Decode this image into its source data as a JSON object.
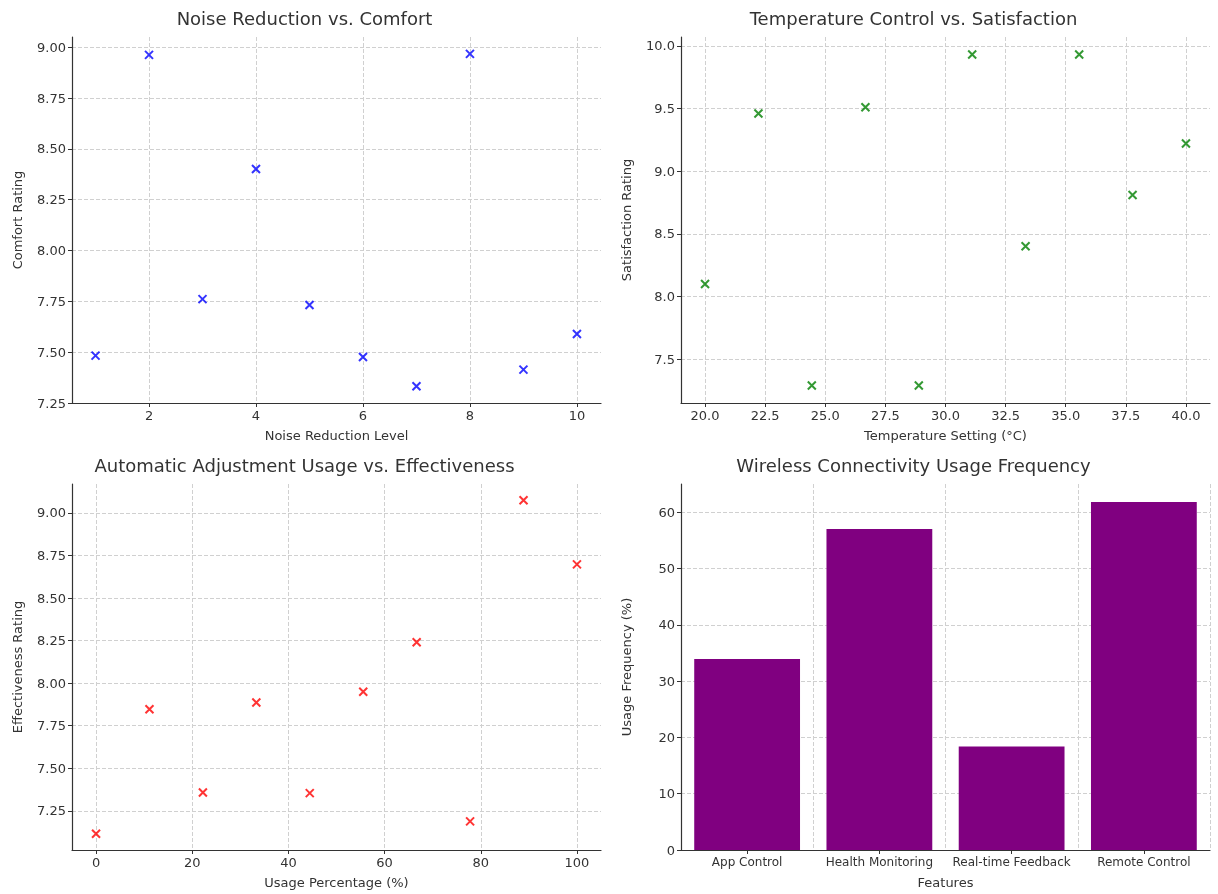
{
  "chart_data": [
    {
      "type": "scatter",
      "title": "Noise Reduction vs. Comfort",
      "xlabel": "Noise Reduction Level",
      "ylabel": "Comfort Rating",
      "marker": "cross",
      "grid": true,
      "x": [
        1,
        2,
        3,
        4,
        5,
        6,
        7,
        8,
        9,
        10
      ],
      "series": [
        {
          "color": "#0000ff",
          "values": [
            7.483,
            8.962,
            7.761,
            8.401,
            7.732,
            7.476,
            7.332,
            8.967,
            7.414,
            7.589
          ]
        }
      ],
      "xlim": [
        0.56,
        10.45
      ],
      "xticks": [
        2,
        4,
        6,
        8,
        10
      ],
      "ylim": [
        7.25,
        9.05
      ],
      "yticks": [
        {
          "value": 7.25,
          "label": "7.25"
        },
        {
          "value": 7.5,
          "label": "7.50"
        },
        {
          "value": 7.75,
          "label": "7.75"
        },
        {
          "value": 8,
          "label": "8.00"
        },
        {
          "value": 8.25,
          "label": "8.25"
        },
        {
          "value": 8.5,
          "label": "8.50"
        },
        {
          "value": 8.75,
          "label": "8.75"
        },
        {
          "value": 9,
          "label": "9.00"
        }
      ]
    },
    {
      "type": "scatter",
      "title": "Temperature Control vs. Satisfaction",
      "xlabel": "Temperature Setting (°C)",
      "ylabel": "Satisfaction Rating",
      "marker": "cross",
      "grid": true,
      "x": [
        20,
        22.22,
        24.44,
        26.67,
        28.89,
        31.11,
        33.33,
        35.56,
        37.78,
        40
      ],
      "series": [
        {
          "color": "#008000",
          "values": [
            8.1,
            9.46,
            7.29,
            9.51,
            7.29,
            9.93,
            8.4,
            9.93,
            8.81,
            9.22
          ]
        }
      ],
      "xlim": [
        19,
        41
      ],
      "xticks": [
        {
          "value": 20,
          "label": "20.0"
        },
        {
          "value": 22.5,
          "label": "22.5"
        },
        {
          "value": 25,
          "label": "25.0"
        },
        {
          "value": 27.5,
          "label": "27.5"
        },
        {
          "value": 30,
          "label": "30.0"
        },
        {
          "value": 32.5,
          "label": "32.5"
        },
        {
          "value": 35,
          "label": "35.0"
        },
        {
          "value": 37.5,
          "label": "37.5"
        },
        {
          "value": 40,
          "label": "40.0"
        }
      ],
      "ylim": [
        7.15,
        10.07
      ],
      "yticks": [
        7.5,
        {
          "value": 8,
          "label": "8.0"
        },
        8.5,
        {
          "value": 9,
          "label": "9.0"
        },
        9.5,
        {
          "value": 10,
          "label": "10.0"
        }
      ]
    },
    {
      "type": "scatter",
      "title": "Automatic Adjustment Usage vs. Effectiveness",
      "xlabel": "Usage Percentage (%)",
      "ylabel": "Effectiveness Rating",
      "marker": "cross",
      "grid": true,
      "x": [
        0,
        11.11,
        22.22,
        33.33,
        44.44,
        55.56,
        66.67,
        77.78,
        88.89,
        100
      ],
      "series": [
        {
          "color": "#ff0000",
          "values": [
            7.115,
            7.847,
            7.358,
            7.886,
            7.354,
            7.95,
            8.24,
            7.188,
            9.075,
            8.698
          ]
        }
      ],
      "xlim": [
        -5,
        105
      ],
      "xticks": [
        0,
        20,
        40,
        60,
        80,
        100
      ],
      "ylim": [
        7.02,
        9.17
      ],
      "yticks": [
        {
          "value": 7.25,
          "label": "7.25"
        },
        {
          "value": 7.5,
          "label": "7.50"
        },
        {
          "value": 7.75,
          "label": "7.75"
        },
        {
          "value": 8,
          "label": "8.00"
        },
        {
          "value": 8.25,
          "label": "8.25"
        },
        {
          "value": 8.5,
          "label": "8.50"
        },
        {
          "value": 8.75,
          "label": "8.75"
        },
        {
          "value": 9,
          "label": "9.00"
        }
      ]
    },
    {
      "type": "bar",
      "title": "Wireless Connectivity Usage Frequency",
      "xlabel": "Features",
      "ylabel": "Usage Frequency (%)",
      "grid": true,
      "categories": [
        "App Control",
        "Health Monitoring",
        "Real-time Feedback",
        "Remote Control"
      ],
      "series": [
        {
          "color": "#800080",
          "values": [
            33.9,
            57.0,
            18.4,
            61.8
          ]
        }
      ],
      "ylim": [
        0,
        65
      ],
      "yticks": [
        0,
        10,
        20,
        30,
        40,
        50,
        60
      ]
    }
  ]
}
